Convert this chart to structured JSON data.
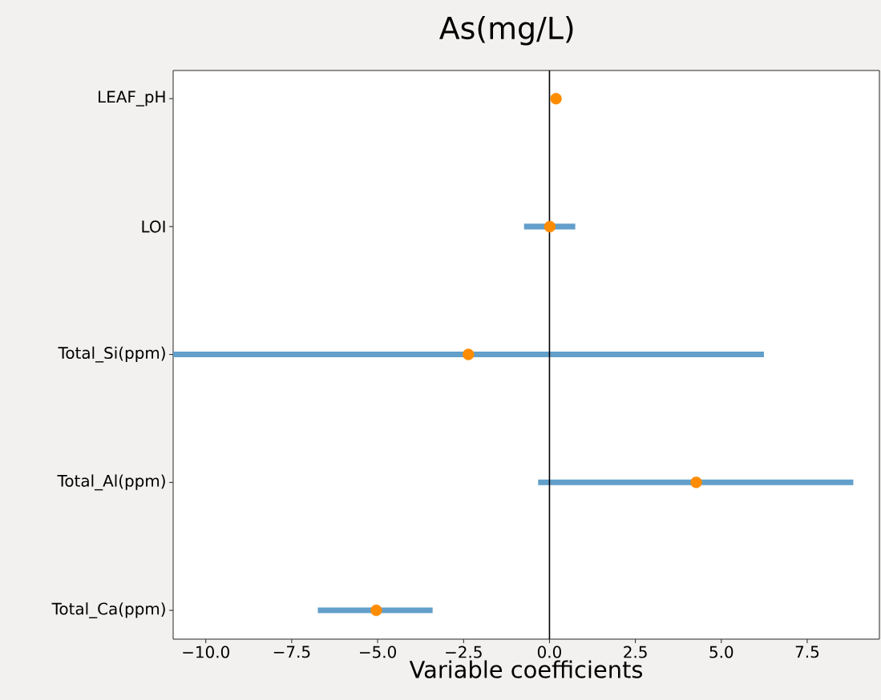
{
  "chart_data": {
    "type": "scatter",
    "title": "As(mg/L)",
    "xlabel": "Variable coefficients",
    "orientation": "horizontal",
    "marker": "circle",
    "color": "#ff8c00",
    "categories": [
      "LEAF_pH",
      "LOI",
      "Total_Si(ppm)",
      "Total_Al(ppm)",
      "Total_Ca(ppm)"
    ],
    "values": [
      0.19,
      0.01,
      -2.36,
      4.27,
      -5.04
    ],
    "errors": [
      null,
      [
        -0.74,
        0.75
      ],
      [
        -10.95,
        6.24
      ],
      [
        -0.33,
        8.84
      ],
      [
        -6.74,
        -3.4
      ]
    ],
    "xlim": [
      -10.95,
      9.6
    ],
    "xticks": [
      {
        "value": -10,
        "label": "−10.0"
      },
      {
        "value": -7.5,
        "label": "−7.5"
      },
      {
        "value": -5,
        "label": "−5.0"
      },
      {
        "value": -2.5,
        "label": "−2.5"
      },
      {
        "value": 0,
        "label": "0.0"
      },
      {
        "value": 2.5,
        "label": "2.5"
      },
      {
        "value": 5,
        "label": "5.0"
      },
      {
        "value": 7.5,
        "label": "7.5"
      }
    ],
    "ref_lines": [
      {
        "axis": "x",
        "value": 0,
        "color": "#000000"
      }
    ]
  }
}
